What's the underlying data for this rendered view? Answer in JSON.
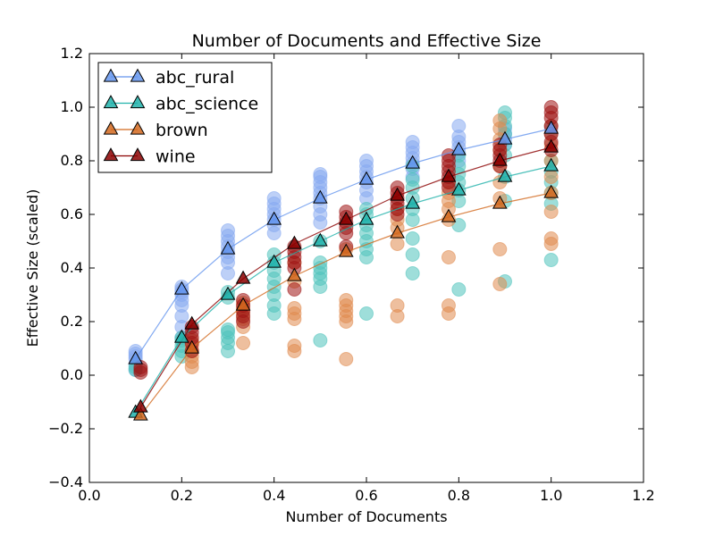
{
  "chart_data": {
    "type": "scatter",
    "title": "Number of Documents and Effective Size",
    "xlabel": "Number of Documents",
    "ylabel": "Effective Size (scaled)",
    "xlim": [
      0.0,
      1.2
    ],
    "ylim": [
      -0.4,
      1.2
    ],
    "xticks": [
      "0.0",
      "0.2",
      "0.4",
      "0.6",
      "0.8",
      "1.0",
      "1.2"
    ],
    "yticks": [
      "−0.4",
      "−0.2",
      "0.0",
      "0.2",
      "0.4",
      "0.6",
      "0.8",
      "1.0",
      "1.2"
    ],
    "grid": false,
    "legend_position": "top-left",
    "series": [
      {
        "name": "abc_rural",
        "color": "#6495ED",
        "marker_color": "#87A9F0",
        "mean": {
          "x": [
            0.1,
            0.2,
            0.3,
            0.4,
            0.5,
            0.6,
            0.7,
            0.8,
            0.9,
            1.0
          ],
          "y": [
            0.06,
            0.32,
            0.47,
            0.58,
            0.66,
            0.73,
            0.79,
            0.84,
            0.88,
            0.92
          ]
        },
        "points": [
          [
            0.1,
            0.02
          ],
          [
            0.1,
            0.04
          ],
          [
            0.1,
            0.06
          ],
          [
            0.1,
            0.07
          ],
          [
            0.1,
            0.08
          ],
          [
            0.1,
            0.09
          ],
          [
            0.2,
            0.14
          ],
          [
            0.2,
            0.18
          ],
          [
            0.2,
            0.22
          ],
          [
            0.2,
            0.26
          ],
          [
            0.2,
            0.28
          ],
          [
            0.2,
            0.3
          ],
          [
            0.2,
            0.31
          ],
          [
            0.2,
            0.32
          ],
          [
            0.2,
            0.33
          ],
          [
            0.3,
            0.38
          ],
          [
            0.3,
            0.42
          ],
          [
            0.3,
            0.44
          ],
          [
            0.3,
            0.46
          ],
          [
            0.3,
            0.48
          ],
          [
            0.3,
            0.5
          ],
          [
            0.3,
            0.52
          ],
          [
            0.3,
            0.54
          ],
          [
            0.4,
            0.53
          ],
          [
            0.4,
            0.56
          ],
          [
            0.4,
            0.58
          ],
          [
            0.4,
            0.6
          ],
          [
            0.4,
            0.62
          ],
          [
            0.4,
            0.64
          ],
          [
            0.4,
            0.66
          ],
          [
            0.5,
            0.57
          ],
          [
            0.5,
            0.6
          ],
          [
            0.5,
            0.63
          ],
          [
            0.5,
            0.66
          ],
          [
            0.5,
            0.68
          ],
          [
            0.5,
            0.7
          ],
          [
            0.5,
            0.72
          ],
          [
            0.5,
            0.74
          ],
          [
            0.5,
            0.75
          ],
          [
            0.6,
            0.66
          ],
          [
            0.6,
            0.69
          ],
          [
            0.6,
            0.72
          ],
          [
            0.6,
            0.74
          ],
          [
            0.6,
            0.76
          ],
          [
            0.6,
            0.78
          ],
          [
            0.6,
            0.8
          ],
          [
            0.7,
            0.74
          ],
          [
            0.7,
            0.77
          ],
          [
            0.7,
            0.79
          ],
          [
            0.7,
            0.81
          ],
          [
            0.7,
            0.83
          ],
          [
            0.7,
            0.85
          ],
          [
            0.7,
            0.87
          ],
          [
            0.8,
            0.8
          ],
          [
            0.8,
            0.83
          ],
          [
            0.8,
            0.85
          ],
          [
            0.8,
            0.87
          ],
          [
            0.8,
            0.89
          ],
          [
            0.8,
            0.93
          ],
          [
            0.9,
            0.86
          ],
          [
            0.9,
            0.88
          ],
          [
            0.9,
            0.9
          ],
          [
            0.9,
            0.92
          ],
          [
            1.0,
            0.9
          ],
          [
            1.0,
            0.92
          ],
          [
            1.0,
            0.93
          ]
        ]
      },
      {
        "name": "abc_science",
        "color": "#20B2AA",
        "marker_color": "#4FC3BC",
        "mean": {
          "x": [
            0.1,
            0.2,
            0.3,
            0.4,
            0.5,
            0.6,
            0.7,
            0.8,
            0.9,
            1.0
          ],
          "y": [
            -0.14,
            0.14,
            0.3,
            0.42,
            0.5,
            0.58,
            0.64,
            0.69,
            0.74,
            0.78
          ]
        },
        "points": [
          [
            0.1,
            0.02
          ],
          [
            0.1,
            0.03
          ],
          [
            0.2,
            0.07
          ],
          [
            0.2,
            0.09
          ],
          [
            0.2,
            0.11
          ],
          [
            0.2,
            0.13
          ],
          [
            0.2,
            0.14
          ],
          [
            0.3,
            0.09
          ],
          [
            0.3,
            0.12
          ],
          [
            0.3,
            0.14
          ],
          [
            0.3,
            0.16
          ],
          [
            0.3,
            0.17
          ],
          [
            0.3,
            0.29
          ],
          [
            0.3,
            0.31
          ],
          [
            0.4,
            0.23
          ],
          [
            0.4,
            0.26
          ],
          [
            0.4,
            0.3
          ],
          [
            0.4,
            0.33
          ],
          [
            0.4,
            0.36
          ],
          [
            0.4,
            0.39
          ],
          [
            0.4,
            0.42
          ],
          [
            0.4,
            0.45
          ],
          [
            0.5,
            0.13
          ],
          [
            0.5,
            0.33
          ],
          [
            0.5,
            0.36
          ],
          [
            0.5,
            0.38
          ],
          [
            0.5,
            0.4
          ],
          [
            0.5,
            0.42
          ],
          [
            0.5,
            0.5
          ],
          [
            0.6,
            0.23
          ],
          [
            0.6,
            0.44
          ],
          [
            0.6,
            0.47
          ],
          [
            0.6,
            0.5
          ],
          [
            0.6,
            0.53
          ],
          [
            0.6,
            0.56
          ],
          [
            0.6,
            0.6
          ],
          [
            0.6,
            0.62
          ],
          [
            0.7,
            0.38
          ],
          [
            0.7,
            0.45
          ],
          [
            0.7,
            0.51
          ],
          [
            0.7,
            0.58
          ],
          [
            0.7,
            0.62
          ],
          [
            0.7,
            0.66
          ],
          [
            0.7,
            0.7
          ],
          [
            0.7,
            0.73
          ],
          [
            0.7,
            0.78
          ],
          [
            0.8,
            0.32
          ],
          [
            0.8,
            0.56
          ],
          [
            0.8,
            0.65
          ],
          [
            0.8,
            0.69
          ],
          [
            0.8,
            0.72
          ],
          [
            0.8,
            0.75
          ],
          [
            0.8,
            0.78
          ],
          [
            0.8,
            0.82
          ],
          [
            0.9,
            0.35
          ],
          [
            0.9,
            0.65
          ],
          [
            0.9,
            0.74
          ],
          [
            0.9,
            0.82
          ],
          [
            0.9,
            0.86
          ],
          [
            0.9,
            0.9
          ],
          [
            0.9,
            0.93
          ],
          [
            0.9,
            0.96
          ],
          [
            0.9,
            0.98
          ],
          [
            1.0,
            0.43
          ],
          [
            1.0,
            0.64
          ],
          [
            1.0,
            0.68
          ],
          [
            1.0,
            0.72
          ],
          [
            1.0,
            0.76
          ],
          [
            1.0,
            0.8
          ]
        ]
      },
      {
        "name": "brown",
        "color": "#D2691E",
        "marker_color": "#E08B4F",
        "mean": {
          "x": [
            0.111,
            0.222,
            0.333,
            0.444,
            0.556,
            0.667,
            0.778,
            0.889,
            1.0
          ],
          "y": [
            -0.15,
            0.1,
            0.26,
            0.37,
            0.46,
            0.53,
            0.59,
            0.64,
            0.68
          ]
        },
        "points": [
          [
            0.222,
            0.03
          ],
          [
            0.222,
            0.05
          ],
          [
            0.222,
            0.07
          ],
          [
            0.222,
            0.09
          ],
          [
            0.222,
            0.11
          ],
          [
            0.222,
            0.13
          ],
          [
            0.333,
            0.12
          ],
          [
            0.333,
            0.18
          ],
          [
            0.333,
            0.21
          ],
          [
            0.333,
            0.23
          ],
          [
            0.333,
            0.25
          ],
          [
            0.333,
            0.27
          ],
          [
            0.444,
            0.09
          ],
          [
            0.444,
            0.11
          ],
          [
            0.444,
            0.21
          ],
          [
            0.444,
            0.23
          ],
          [
            0.444,
            0.25
          ],
          [
            0.444,
            0.35
          ],
          [
            0.444,
            0.42
          ],
          [
            0.556,
            0.06
          ],
          [
            0.556,
            0.2
          ],
          [
            0.556,
            0.22
          ],
          [
            0.556,
            0.24
          ],
          [
            0.556,
            0.26
          ],
          [
            0.556,
            0.28
          ],
          [
            0.556,
            0.47
          ],
          [
            0.667,
            0.22
          ],
          [
            0.667,
            0.26
          ],
          [
            0.667,
            0.49
          ],
          [
            0.667,
            0.55
          ],
          [
            0.667,
            0.58
          ],
          [
            0.667,
            0.62
          ],
          [
            0.778,
            0.23
          ],
          [
            0.778,
            0.26
          ],
          [
            0.778,
            0.44
          ],
          [
            0.778,
            0.58
          ],
          [
            0.778,
            0.62
          ],
          [
            0.778,
            0.65
          ],
          [
            0.778,
            0.68
          ],
          [
            0.778,
            0.72
          ],
          [
            0.889,
            0.34
          ],
          [
            0.889,
            0.47
          ],
          [
            0.889,
            0.66
          ],
          [
            0.889,
            0.72
          ],
          [
            0.889,
            0.78
          ],
          [
            0.889,
            0.84
          ],
          [
            0.889,
            0.88
          ],
          [
            0.889,
            0.92
          ],
          [
            0.889,
            0.95
          ],
          [
            1.0,
            0.49
          ],
          [
            1.0,
            0.51
          ],
          [
            1.0,
            0.61
          ],
          [
            1.0,
            0.68
          ],
          [
            1.0,
            0.74
          ],
          [
            1.0,
            0.8
          ],
          [
            1.0,
            0.86
          ],
          [
            1.0,
            0.9
          ],
          [
            1.0,
            0.93
          ]
        ]
      },
      {
        "name": "wine",
        "color": "#8B0000",
        "marker_color": "#9E1414",
        "mean": {
          "x": [
            0.111,
            0.222,
            0.333,
            0.444,
            0.556,
            0.667,
            0.778,
            0.889,
            1.0
          ],
          "y": [
            -0.12,
            0.19,
            0.36,
            0.49,
            0.58,
            0.67,
            0.74,
            0.8,
            0.85
          ]
        },
        "points": [
          [
            0.111,
            0.01
          ],
          [
            0.111,
            0.02
          ],
          [
            0.111,
            0.03
          ],
          [
            0.222,
            0.09
          ],
          [
            0.222,
            0.12
          ],
          [
            0.222,
            0.14
          ],
          [
            0.222,
            0.16
          ],
          [
            0.222,
            0.18
          ],
          [
            0.333,
            0.2
          ],
          [
            0.333,
            0.22
          ],
          [
            0.333,
            0.24
          ],
          [
            0.333,
            0.26
          ],
          [
            0.333,
            0.28
          ],
          [
            0.444,
            0.32
          ],
          [
            0.444,
            0.4
          ],
          [
            0.444,
            0.42
          ],
          [
            0.444,
            0.44
          ],
          [
            0.444,
            0.46
          ],
          [
            0.444,
            0.48
          ],
          [
            0.556,
            0.48
          ],
          [
            0.556,
            0.53
          ],
          [
            0.556,
            0.55
          ],
          [
            0.556,
            0.57
          ],
          [
            0.556,
            0.59
          ],
          [
            0.556,
            0.61
          ],
          [
            0.667,
            0.6
          ],
          [
            0.667,
            0.62
          ],
          [
            0.667,
            0.64
          ],
          [
            0.667,
            0.66
          ],
          [
            0.667,
            0.68
          ],
          [
            0.667,
            0.7
          ],
          [
            0.778,
            0.7
          ],
          [
            0.778,
            0.72
          ],
          [
            0.778,
            0.74
          ],
          [
            0.778,
            0.76
          ],
          [
            0.778,
            0.78
          ],
          [
            0.778,
            0.8
          ],
          [
            0.778,
            0.82
          ],
          [
            0.889,
            0.78
          ],
          [
            0.889,
            0.8
          ],
          [
            0.889,
            0.82
          ],
          [
            0.889,
            0.84
          ],
          [
            0.889,
            0.86
          ],
          [
            1.0,
            0.84
          ],
          [
            1.0,
            0.87
          ],
          [
            1.0,
            0.9
          ],
          [
            1.0,
            0.93
          ],
          [
            1.0,
            0.96
          ],
          [
            1.0,
            0.98
          ],
          [
            1.0,
            1.0
          ]
        ]
      }
    ]
  }
}
